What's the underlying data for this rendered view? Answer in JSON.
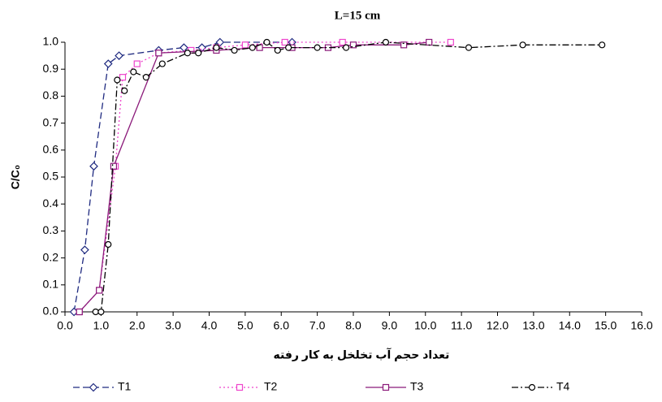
{
  "chart_data": {
    "type": "line",
    "title": "L=15 cm",
    "xlabel": "تعداد حجم آب تخلخل به کار رفته",
    "ylabel": "C/C₀",
    "xlim": [
      0,
      16
    ],
    "ylim": [
      0,
      1
    ],
    "xticks": [
      {
        "value": 0,
        "label": "0.0"
      },
      {
        "value": 1,
        "label": "1.0"
      },
      {
        "value": 2,
        "label": "2.0"
      },
      {
        "value": 3,
        "label": "3.0"
      },
      {
        "value": 4,
        "label": "4.0"
      },
      {
        "value": 5,
        "label": "5.0"
      },
      {
        "value": 6,
        "label": "6.0"
      },
      {
        "value": 7,
        "label": "7.0"
      },
      {
        "value": 8,
        "label": "8.0"
      },
      {
        "value": 9,
        "label": "9.0"
      },
      {
        "value": 10,
        "label": "10.0"
      },
      {
        "value": 11,
        "label": "11.0"
      },
      {
        "value": 12,
        "label": "12.0"
      },
      {
        "value": 13,
        "label": "13.0"
      },
      {
        "value": 14,
        "label": "14.0"
      },
      {
        "value": 15,
        "label": "15.0"
      },
      {
        "value": 16,
        "label": "16.0"
      }
    ],
    "yticks": [
      {
        "value": 0,
        "label": "0.0"
      },
      {
        "value": 0.1,
        "label": "0.1"
      },
      {
        "value": 0.2,
        "label": "0.2"
      },
      {
        "value": 0.3,
        "label": "0.3"
      },
      {
        "value": 0.4,
        "label": "0.4"
      },
      {
        "value": 0.5,
        "label": "0.5"
      },
      {
        "value": 0.6,
        "label": "0.6"
      },
      {
        "value": 0.7,
        "label": "0.7"
      },
      {
        "value": 0.8,
        "label": "0.8"
      },
      {
        "value": 0.9,
        "label": "0.9"
      },
      {
        "value": 1,
        "label": "1.0"
      }
    ],
    "legend": "bottom",
    "series": [
      {
        "name": "T1",
        "color": "#1f2a80",
        "marker": "diamond",
        "dash": "8 4",
        "x": [
          0.25,
          0.55,
          0.8,
          1.2,
          1.5,
          2.6,
          3.3,
          3.8,
          4.3,
          6.3
        ],
        "values": [
          0,
          0.23,
          0.54,
          0.92,
          0.95,
          0.97,
          0.98,
          0.98,
          1.0,
          1.0
        ]
      },
      {
        "name": "T2",
        "color": "#ee44cc",
        "marker": "square",
        "dash": "2 3",
        "x": [
          0.4,
          0.95,
          1.4,
          1.6,
          2.0,
          2.6,
          3.5,
          4.2,
          5.0,
          6.1,
          7.7,
          10.7
        ],
        "values": [
          0,
          0.08,
          0.54,
          0.87,
          0.92,
          0.96,
          0.97,
          0.98,
          0.99,
          1.0,
          1.0,
          1.0
        ]
      },
      {
        "name": "T3",
        "color": "#8b1a7a",
        "marker": "square",
        "dash": "",
        "x": [
          0.4,
          0.95,
          1.35,
          2.6,
          4.2,
          5.4,
          6.3,
          7.3,
          8.0,
          9.4,
          10.1
        ],
        "values": [
          0,
          0.08,
          0.54,
          0.96,
          0.97,
          0.98,
          0.98,
          0.98,
          0.99,
          0.99,
          1.0
        ]
      },
      {
        "name": "T4",
        "color": "#000000",
        "marker": "circle",
        "dash": "8 3 2 3",
        "x": [
          0.85,
          1.0,
          1.2,
          1.45,
          1.65,
          1.9,
          2.25,
          2.7,
          3.4,
          3.7,
          4.2,
          4.7,
          5.2,
          5.6,
          5.9,
          6.2,
          7.0,
          7.8,
          8.9,
          11.2,
          12.7,
          14.9
        ],
        "values": [
          0,
          0,
          0.25,
          0.86,
          0.82,
          0.89,
          0.87,
          0.92,
          0.96,
          0.96,
          0.98,
          0.97,
          0.98,
          1.0,
          0.97,
          0.98,
          0.98,
          0.98,
          1.0,
          0.98,
          0.99,
          0.99
        ]
      }
    ]
  }
}
